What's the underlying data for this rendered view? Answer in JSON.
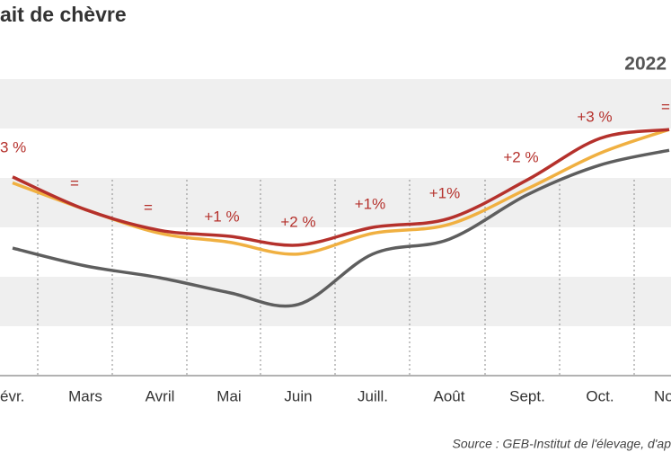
{
  "chart_data": {
    "type": "line",
    "title": "ait de chèvre",
    "source": "Source : GEB-Institut de l'élevage, d'ap",
    "categories": [
      "évr.",
      "Mars",
      "Avril",
      "Mai",
      "Juin",
      "Juill.",
      "Août",
      "Sept.",
      "Oct.",
      "No"
    ],
    "series": [
      {
        "name": "2022",
        "color": "#b5312c",
        "values": [
          67,
          56,
          49,
          47,
          44,
          50,
          53,
          66,
          80,
          83
        ]
      },
      {
        "color": "#f0b041",
        "values": [
          65,
          56,
          48,
          45,
          41,
          48,
          51,
          63,
          75,
          83
        ]
      },
      {
        "color": "#5e5e5e",
        "values": [
          43,
          37,
          33,
          28,
          24,
          41,
          46,
          61,
          71,
          76
        ]
      }
    ],
    "annotations": [
      "3 %",
      "=",
      "=",
      "+1 %",
      "+2 %",
      "+1%",
      "+1%",
      "+2 %",
      "+3 %",
      "="
    ],
    "ylim": [
      0,
      100
    ]
  }
}
